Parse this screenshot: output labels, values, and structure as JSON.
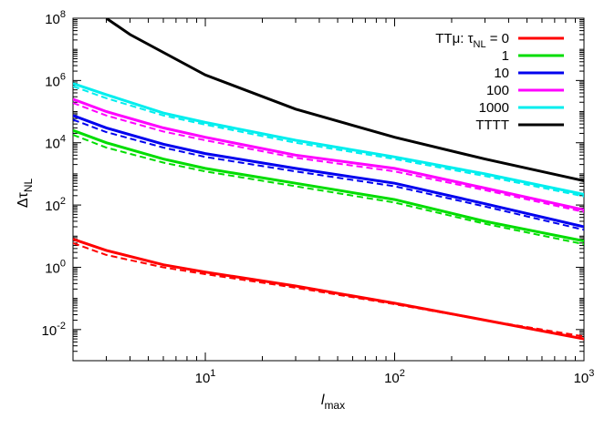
{
  "chart_data": {
    "type": "line",
    "title": "",
    "xlabel": "l_max",
    "xlabel_parts": {
      "main": "l",
      "sub": "max"
    },
    "ylabel": "Δτ_NL",
    "ylabel_parts": {
      "main": "Δτ",
      "sub": "NL"
    },
    "x_scale": "log",
    "y_scale": "log",
    "xlim": [
      2,
      1000
    ],
    "ylim": [
      0.001,
      100000000
    ],
    "grid": false,
    "legend_position": "top-right",
    "x_ticks": [
      {
        "value": 10,
        "base": "10",
        "exp": "1"
      },
      {
        "value": 100,
        "base": "10",
        "exp": "2"
      },
      {
        "value": 1000,
        "base": "10",
        "exp": "3"
      }
    ],
    "y_ticks": [
      {
        "value": 0.01,
        "base": "10",
        "exp": "-2"
      },
      {
        "value": 1,
        "base": "10",
        "exp": "0"
      },
      {
        "value": 100,
        "base": "10",
        "exp": "2"
      },
      {
        "value": 10000,
        "base": "10",
        "exp": "4"
      },
      {
        "value": 1000000,
        "base": "10",
        "exp": "6"
      },
      {
        "value": 100000000,
        "base": "10",
        "exp": "8"
      }
    ],
    "legend": [
      {
        "label": "TTμ: τ_NL = 0",
        "color": "#ff0000"
      },
      {
        "label": "1",
        "color": "#00dd00"
      },
      {
        "label": "10",
        "color": "#0000ee"
      },
      {
        "label": "100",
        "color": "#ff00ff"
      },
      {
        "label": "1000",
        "color": "#00eeee"
      },
      {
        "label": "TTTT",
        "color": "#000000"
      }
    ],
    "series": [
      {
        "name": "TTμ: τ_NL = 0",
        "color": "#ff0000",
        "solid": {
          "x": [
            2,
            3,
            6,
            10,
            30,
            100,
            300,
            1000
          ],
          "y": [
            8,
            3.5,
            1.2,
            0.7,
            0.25,
            0.07,
            0.02,
            0.005
          ]
        },
        "dashed": {
          "x": [
            2,
            3,
            6,
            10,
            30,
            100,
            300,
            1000
          ],
          "y": [
            6,
            2.5,
            1.0,
            0.6,
            0.22,
            0.065,
            0.02,
            0.006
          ]
        }
      },
      {
        "name": "1",
        "color": "#00dd00",
        "solid": {
          "x": [
            2,
            3,
            6,
            10,
            30,
            100,
            300,
            1000
          ],
          "y": [
            25000,
            10000,
            3000,
            1500,
            500,
            150,
            30,
            7
          ]
        },
        "dashed": {
          "x": [
            2,
            3,
            6,
            10,
            30,
            100,
            300,
            1000
          ],
          "y": [
            18000,
            7000,
            2300,
            1200,
            400,
            120,
            25,
            5.5
          ]
        }
      },
      {
        "name": "10",
        "color": "#0000ee",
        "solid": {
          "x": [
            2,
            3,
            6,
            10,
            30,
            100,
            300,
            1000
          ],
          "y": [
            75000,
            30000,
            9000,
            4500,
            1500,
            500,
            110,
            20
          ]
        },
        "dashed": {
          "x": [
            2,
            3,
            6,
            10,
            30,
            100,
            300,
            1000
          ],
          "y": [
            55000,
            22000,
            7000,
            3500,
            1200,
            400,
            90,
            16
          ]
        }
      },
      {
        "name": "100",
        "color": "#ff00ff",
        "solid": {
          "x": [
            2,
            3,
            6,
            10,
            30,
            100,
            300,
            1000
          ],
          "y": [
            250000,
            100000,
            30000,
            15000,
            4000,
            1500,
            350,
            70
          ]
        },
        "dashed": {
          "x": [
            2,
            3,
            6,
            10,
            30,
            100,
            300,
            1000
          ],
          "y": [
            190000,
            75000,
            23000,
            12000,
            3300,
            1200,
            300,
            60
          ]
        }
      },
      {
        "name": "1000",
        "color": "#00eeee",
        "solid": {
          "x": [
            2,
            3,
            6,
            10,
            30,
            100,
            300,
            1000
          ],
          "y": [
            800000,
            350000,
            90000,
            45000,
            12000,
            3500,
            1000,
            220
          ]
        },
        "dashed": {
          "x": [
            2,
            3,
            6,
            10,
            30,
            100,
            300,
            1000
          ],
          "y": [
            650000,
            270000,
            75000,
            38000,
            10000,
            3000,
            850,
            190
          ]
        }
      },
      {
        "name": "TTTT",
        "color": "#000000",
        "solid": {
          "x": [
            3,
            4,
            10,
            30,
            100,
            300,
            1000
          ],
          "y": [
            100000000,
            30000000,
            1500000,
            120000,
            15000,
            3000,
            600
          ]
        }
      }
    ]
  }
}
